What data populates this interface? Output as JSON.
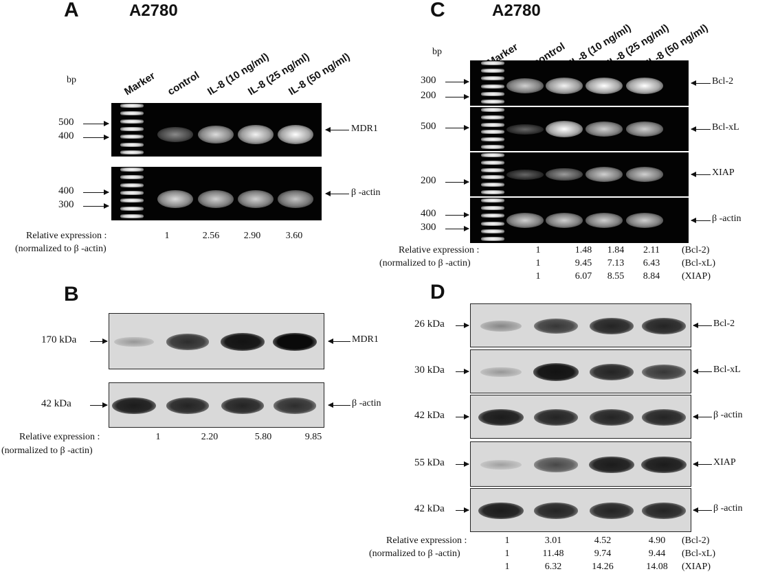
{
  "panels": {
    "A": {
      "letter": "A",
      "cell_line": "A2780",
      "unit": "bp",
      "lanes": [
        "Marker",
        "control",
        "IL-8 (10 ng/ml)",
        "IL-8 (25 ng/ml)",
        "IL-8 (50 ng/ml)"
      ],
      "gels": [
        {
          "target": "MDR1",
          "markers": [
            "500",
            "400"
          ],
          "intensity": [
            0.45,
            0.85,
            0.95,
            1.0
          ]
        },
        {
          "target": "β -actin",
          "markers": [
            "400",
            "300"
          ],
          "intensity": [
            0.85,
            0.8,
            0.8,
            0.75
          ]
        }
      ],
      "rel_label_1": "Relative expression :",
      "rel_label_2": "(normalized to  β -actin)",
      "values": [
        "1",
        "2.56",
        "2.90",
        "3.60"
      ]
    },
    "B": {
      "letter": "B",
      "blots": [
        {
          "target": "MDR1",
          "size": "170 kDa",
          "intensity": [
            0.2,
            0.8,
            0.95,
            1.0
          ]
        },
        {
          "target": "β -actin",
          "size": "42 kDa",
          "intensity": [
            0.9,
            0.85,
            0.85,
            0.8
          ]
        }
      ],
      "rel_label_1": "Relative expression :",
      "rel_label_2": "(normalized to  β -actin)",
      "values": [
        "1",
        "2.20",
        "5.80",
        "9.85"
      ]
    },
    "C": {
      "letter": "C",
      "cell_line": "A2780",
      "unit": "bp",
      "lanes": [
        "Marker",
        "control",
        "IL-8 (10 ng/ml)",
        "IL-8 (25 ng/ml)",
        "IL-8 (50 ng/ml)"
      ],
      "gels": [
        {
          "target": "Bcl-2",
          "markers": [
            "300",
            "200"
          ],
          "intensity": [
            0.8,
            0.95,
            1.0,
            1.0
          ]
        },
        {
          "target": "Bcl-xL",
          "markers": [
            "500"
          ],
          "intensity": [
            0.25,
            1.0,
            0.8,
            0.8
          ]
        },
        {
          "target": "XIAP",
          "markers": [
            "200"
          ],
          "intensity": [
            0.25,
            0.55,
            0.8,
            0.8
          ]
        },
        {
          "target": "β -actin",
          "markers": [
            "400",
            "300"
          ],
          "intensity": [
            0.8,
            0.8,
            0.8,
            0.8
          ]
        }
      ],
      "rel_label_1": "Relative expression :",
      "rel_label_2": "(normalized to  β -actin)",
      "rows": [
        {
          "values": [
            "1",
            "1.48",
            "1.84",
            "2.11"
          ],
          "target": "(Bcl-2)"
        },
        {
          "values": [
            "1",
            "9.45",
            "7.13",
            "6.43"
          ],
          "target": "(Bcl-xL)"
        },
        {
          "values": [
            "1",
            "6.07",
            "8.55",
            "8.84"
          ],
          "target": "(XIAP)"
        }
      ]
    },
    "D": {
      "letter": "D",
      "blots": [
        {
          "target": "Bcl-2",
          "size": "26 kDa",
          "intensity": [
            0.3,
            0.75,
            0.85,
            0.85
          ]
        },
        {
          "target": "Bcl-xL",
          "size": "30 kDa",
          "intensity": [
            0.2,
            0.95,
            0.85,
            0.75
          ]
        },
        {
          "target": "β -actin",
          "size": "42 kDa",
          "intensity": [
            0.9,
            0.85,
            0.85,
            0.85
          ]
        },
        {
          "target": "XIAP",
          "size": "55 kDa",
          "intensity": [
            0.15,
            0.65,
            0.9,
            0.9
          ]
        },
        {
          "target": "β -actin",
          "size": "42 kDa",
          "intensity": [
            0.9,
            0.85,
            0.85,
            0.85
          ]
        }
      ],
      "rel_label_1": "Relative expression :",
      "rel_label_2": "(normalized to  β -actin)",
      "rows": [
        {
          "values": [
            "1",
            "3.01",
            "4.52",
            "4.90"
          ],
          "target": "(Bcl-2)"
        },
        {
          "values": [
            "1",
            "11.48",
            "9.74",
            "9.44"
          ],
          "target": "(Bcl-xL)"
        },
        {
          "values": [
            "1",
            "6.32",
            "14.26",
            "14.08"
          ],
          "target": "(XIAP)"
        }
      ]
    }
  }
}
